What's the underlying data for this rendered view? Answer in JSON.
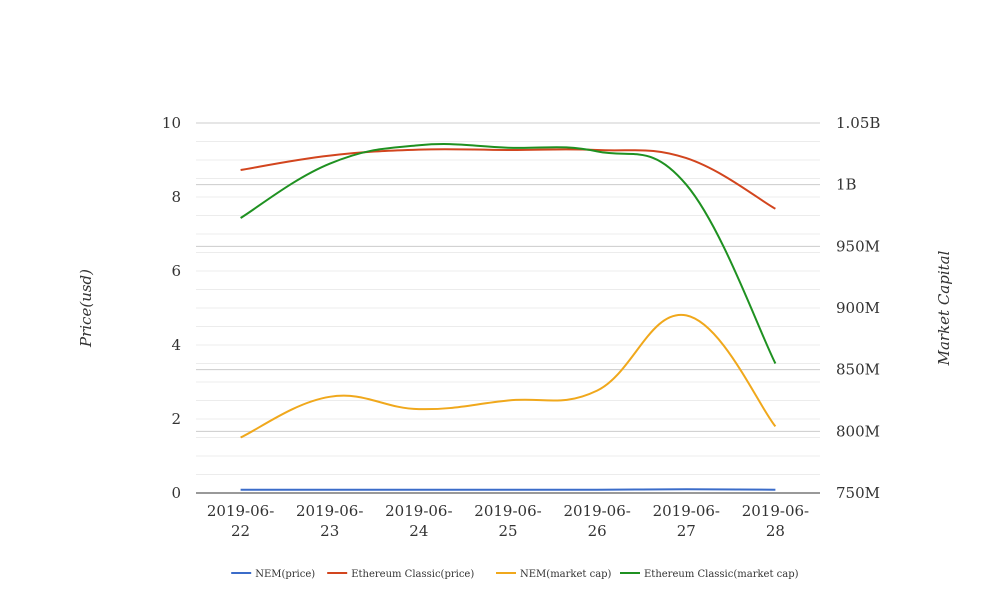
{
  "chart_data": {
    "type": "line",
    "title": "",
    "grid": true,
    "legend_position": "bottom",
    "categories": [
      "2019-06-22",
      "2019-06-23",
      "2019-06-24",
      "2019-06-25",
      "2019-06-26",
      "2019-06-27",
      "2019-06-28"
    ],
    "category_labels": [
      [
        "2019-06-",
        "22"
      ],
      [
        "2019-06-",
        "23"
      ],
      [
        "2019-06-",
        "24"
      ],
      [
        "2019-06-",
        "25"
      ],
      [
        "2019-06-",
        "26"
      ],
      [
        "2019-06-",
        "27"
      ],
      [
        "2019-06-",
        "28"
      ]
    ],
    "y_left": {
      "label": "Price(usd)",
      "ylim": [
        0,
        10
      ],
      "ticks": [
        0,
        2,
        4,
        6,
        8,
        10
      ],
      "tick_labels": [
        "0",
        "2",
        "4",
        "6",
        "8",
        "10"
      ]
    },
    "y_right": {
      "label": "Market Capital",
      "ylim": [
        750000000,
        1050000000
      ],
      "ticks": [
        750000000,
        800000000,
        850000000,
        900000000,
        950000000,
        1000000000,
        1050000000
      ],
      "tick_labels": [
        "750M",
        "800M",
        "850M",
        "900M",
        "950M",
        "1B",
        "1.05B"
      ]
    },
    "series": [
      {
        "name": "NEM(price)",
        "axis": "left",
        "color": "#3b6cc9",
        "values": [
          0.09,
          0.09,
          0.09,
          0.09,
          0.09,
          0.1,
          0.09
        ]
      },
      {
        "name": "Ethereum Classic(price)",
        "axis": "left",
        "color": "#d2451e",
        "values": [
          8.73,
          9.12,
          9.28,
          9.27,
          9.27,
          9.05,
          7.68
        ]
      },
      {
        "name": "NEM(market cap)",
        "axis": "right",
        "color": "#f0a81c",
        "values": [
          795000000,
          828000000,
          818000000,
          825000000,
          833000000,
          894000000,
          804000000
        ]
      },
      {
        "name": "Ethereum Classic(market cap)",
        "axis": "right",
        "color": "#1f9121",
        "values": [
          973000000,
          1017000000,
          1032000000,
          1030000000,
          1027000000,
          1000000000,
          855000000
        ]
      }
    ]
  }
}
